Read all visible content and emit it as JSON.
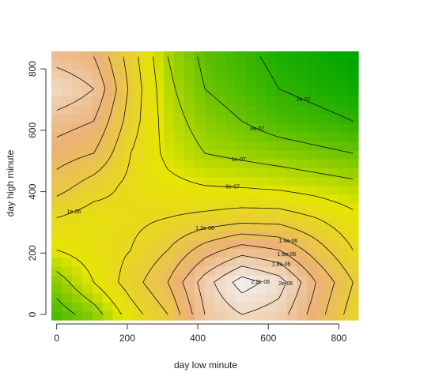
{
  "chart_data": {
    "type": "contour",
    "xlabel": "day low minute",
    "ylabel": "day high minute",
    "xlim": [
      -15,
      855
    ],
    "ylim": [
      -18,
      857
    ],
    "xticks": [
      0,
      200,
      400,
      600,
      800
    ],
    "yticks": [
      0,
      200,
      400,
      600,
      800
    ],
    "x": [
      0,
      105,
      210,
      315,
      420,
      525,
      630,
      735,
      840
    ],
    "y": [
      0,
      105,
      210,
      315,
      420,
      525,
      630,
      735,
      840
    ],
    "z": [
      [
        3e-07,
        5e-07,
        9e-07,
        1.2e-06,
        1.8e-06,
        2e-06,
        1.9e-06,
        1.5e-06,
        1.1e-06
      ],
      [
        5e-07,
        8e-07,
        1.1e-06,
        1.4e-06,
        1.9e-06,
        2.3e-06,
        2.1e-06,
        1.6e-06,
        1.2e-06
      ],
      [
        8e-07,
        9e-07,
        1e-06,
        1.2e-06,
        1.5e-06,
        1.7e-06,
        1.6e-06,
        1.3e-06,
        1e-06
      ],
      [
        1e-06,
        9e-07,
        9.5e-07,
        1e-06,
        1.05e-06,
        1.1e-06,
        1.1e-06,
        1e-06,
        8.5e-07
      ],
      [
        1.3e-06,
        1.1e-06,
        9.5e-07,
        8.5e-07,
        8e-07,
        7.8e-07,
        7.5e-07,
        7e-07,
        6.5e-07
      ],
      [
        1.5e-06,
        1.4e-06,
        1e-06,
        7.5e-07,
        6e-07,
        5.5e-07,
        5e-07,
        4.5e-07,
        4e-07
      ],
      [
        1.7e-06,
        1.6e-06,
        1.1e-06,
        7e-07,
        5e-07,
        4e-07,
        3e-07,
        2.5e-07,
        2e-07
      ],
      [
        2e-06,
        1.8e-06,
        1.15e-06,
        6.5e-07,
        4e-07,
        3e-07,
        2e-07,
        1.5e-07,
        1e-07
      ],
      [
        1.7e-06,
        1.6e-06,
        1.1e-06,
        6e-07,
        3.5e-07,
        2.5e-07,
        1.5e-07,
        1e-07,
        5e-08
      ]
    ],
    "levels": [
      {
        "value": 2e-07,
        "label": "2e-07"
      },
      {
        "value": 4e-07,
        "label": "4e-07"
      },
      {
        "value": 6e-07,
        "label": "6e-07"
      },
      {
        "value": 8e-07,
        "label": "8e-07"
      },
      {
        "value": 1e-06,
        "label": "1e-06"
      },
      {
        "value": 1.2e-06,
        "label": "1.2e-06"
      },
      {
        "value": 1.4e-06,
        "label": "1.4e-06"
      },
      {
        "value": 1.6e-06,
        "label": "1.6e-06"
      },
      {
        "value": 1.8e-06,
        "label": "1.8e-06"
      },
      {
        "value": 2e-06,
        "label": "2e-06"
      },
      {
        "value": 2.2e-06,
        "label": "2.2e-06"
      }
    ],
    "colors": [
      "#00a600",
      "#e6e600",
      "#ecb176",
      "#f2f2f2"
    ]
  }
}
